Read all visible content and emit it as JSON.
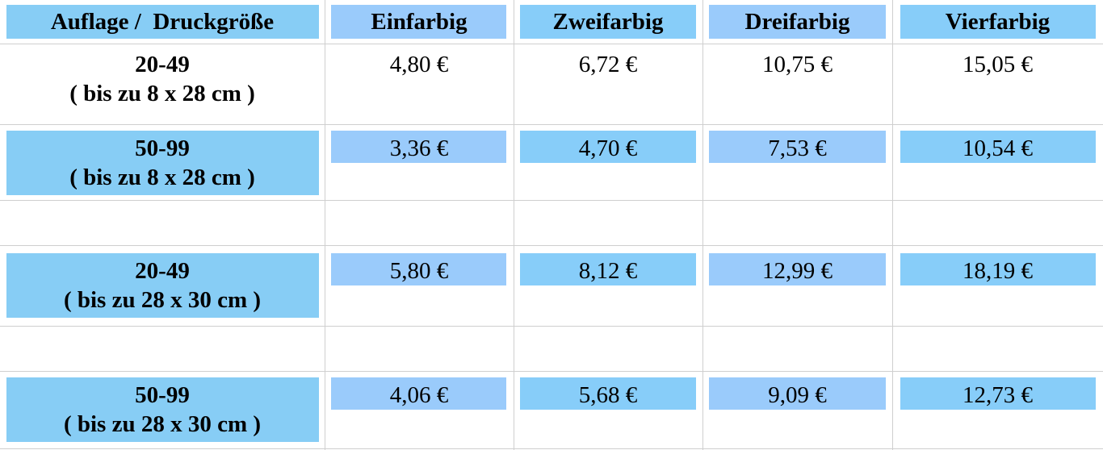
{
  "header": [
    "Auflage /  Druckgröße",
    "Einfarbig",
    "Zweifarbig",
    "Dreifarbig",
    "Vierfarbig"
  ],
  "rows": [
    {
      "quantity": "20-49",
      "size": "( bis zu 8 x 28 cm )",
      "prices": [
        "4,80 €",
        "6,72 €",
        "10,75 €",
        "15,05 €"
      ]
    },
    {
      "quantity": "50-99",
      "size": "( bis zu 8 x 28 cm )",
      "prices": [
        "3,36 €",
        "4,70 €",
        "7,53 €",
        "10,54 €"
      ]
    },
    {
      "quantity": "20-49",
      "size": "( bis zu 28 x 30 cm )",
      "prices": [
        "5,80 €",
        "8,12 €",
        "12,99 €",
        "18,19 €"
      ]
    },
    {
      "quantity": "50-99",
      "size": "( bis zu 28 x 30 cm )",
      "prices": [
        "4,06 €",
        "5,68 €",
        "9,09 €",
        "12,73 €"
      ]
    }
  ]
}
